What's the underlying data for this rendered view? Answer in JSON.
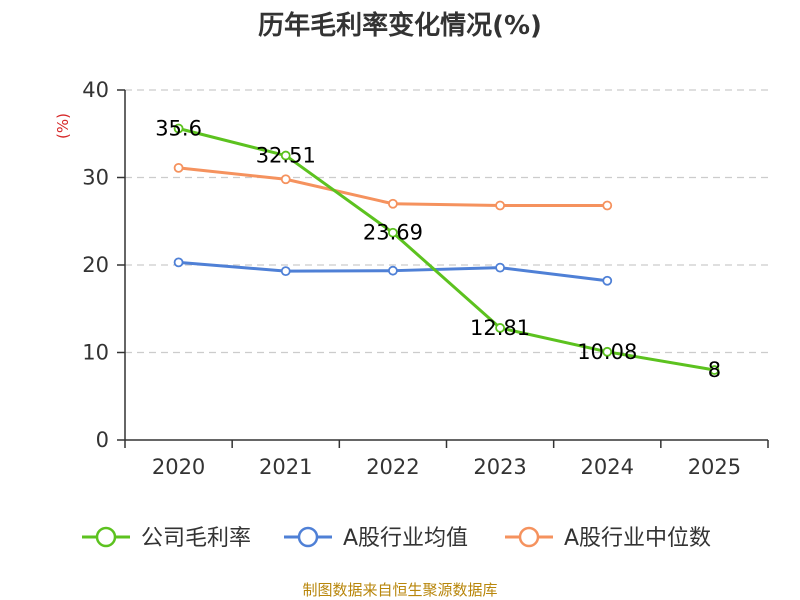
{
  "chart_data": {
    "type": "line",
    "title": "历年毛利率变化情况(%)",
    "ylabel": "(%)",
    "xlabel": "",
    "categories": [
      "2020",
      "2021",
      "2022",
      "2023",
      "2024",
      "2025"
    ],
    "ylim": [
      0,
      40
    ],
    "yticks": [
      0,
      10,
      20,
      30,
      40
    ],
    "grid": "horizontal dashed",
    "legend_position": "bottom",
    "series": [
      {
        "name": "公司毛利率",
        "color": "#5cc21f",
        "values": [
          35.6,
          32.51,
          23.69,
          12.81,
          10.08,
          8
        ],
        "labels": [
          "35.6",
          "32.51",
          "23.69",
          "12.81",
          "10.08",
          "8"
        ]
      },
      {
        "name": "A股行业均值",
        "color": "#4f80d6",
        "values": [
          20.3,
          19.3,
          19.35,
          19.7,
          18.2,
          null
        ]
      },
      {
        "name": "A股行业中位数",
        "color": "#f5925e",
        "values": [
          31.1,
          29.8,
          27.0,
          26.8,
          26.8,
          null
        ]
      }
    ],
    "source": "制图数据来自恒生聚源数据库"
  },
  "colors": {
    "axis": "#333333",
    "grid": "#cccccc",
    "ylabel": "#d62728",
    "source": "#b8860b"
  }
}
